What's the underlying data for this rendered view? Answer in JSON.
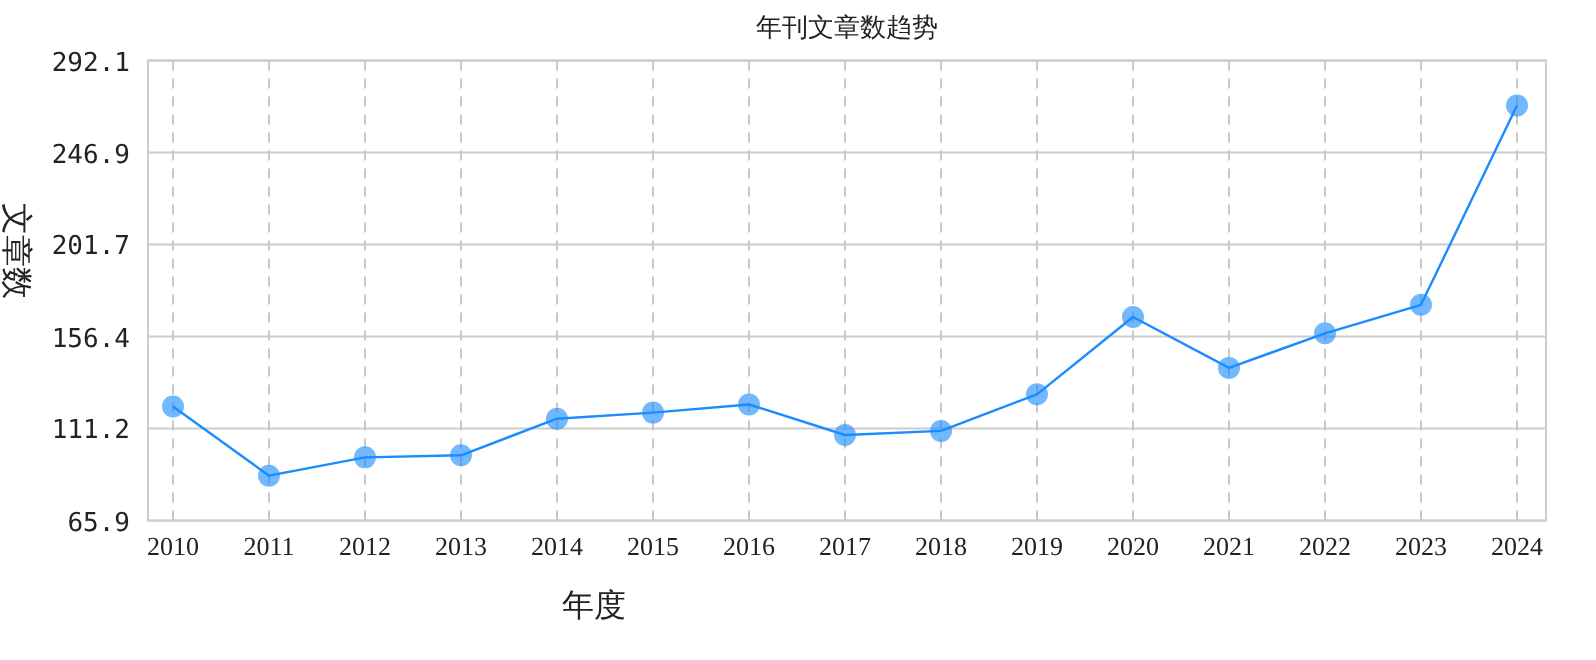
{
  "chart_data": {
    "type": "line",
    "title": "年刊文章数趋势",
    "xlabel": "年度",
    "ylabel": "文章数",
    "categories": [
      "2010",
      "2011",
      "2012",
      "2013",
      "2014",
      "2015",
      "2016",
      "2017",
      "2018",
      "2019",
      "2020",
      "2021",
      "2022",
      "2023",
      "2024"
    ],
    "series": [
      {
        "color": "#1a8cff",
        "values": [
          122,
          88,
          97,
          98,
          116,
          119,
          123,
          108,
          110,
          128,
          166,
          141,
          158,
          172,
          270
        ]
      }
    ],
    "ylim": [
      65.9,
      292.1
    ],
    "yticks": [
      65.9,
      111.2,
      156.4,
      201.7,
      246.9,
      292.1
    ],
    "grid": true,
    "marker": "circle",
    "line_style": "solid"
  }
}
